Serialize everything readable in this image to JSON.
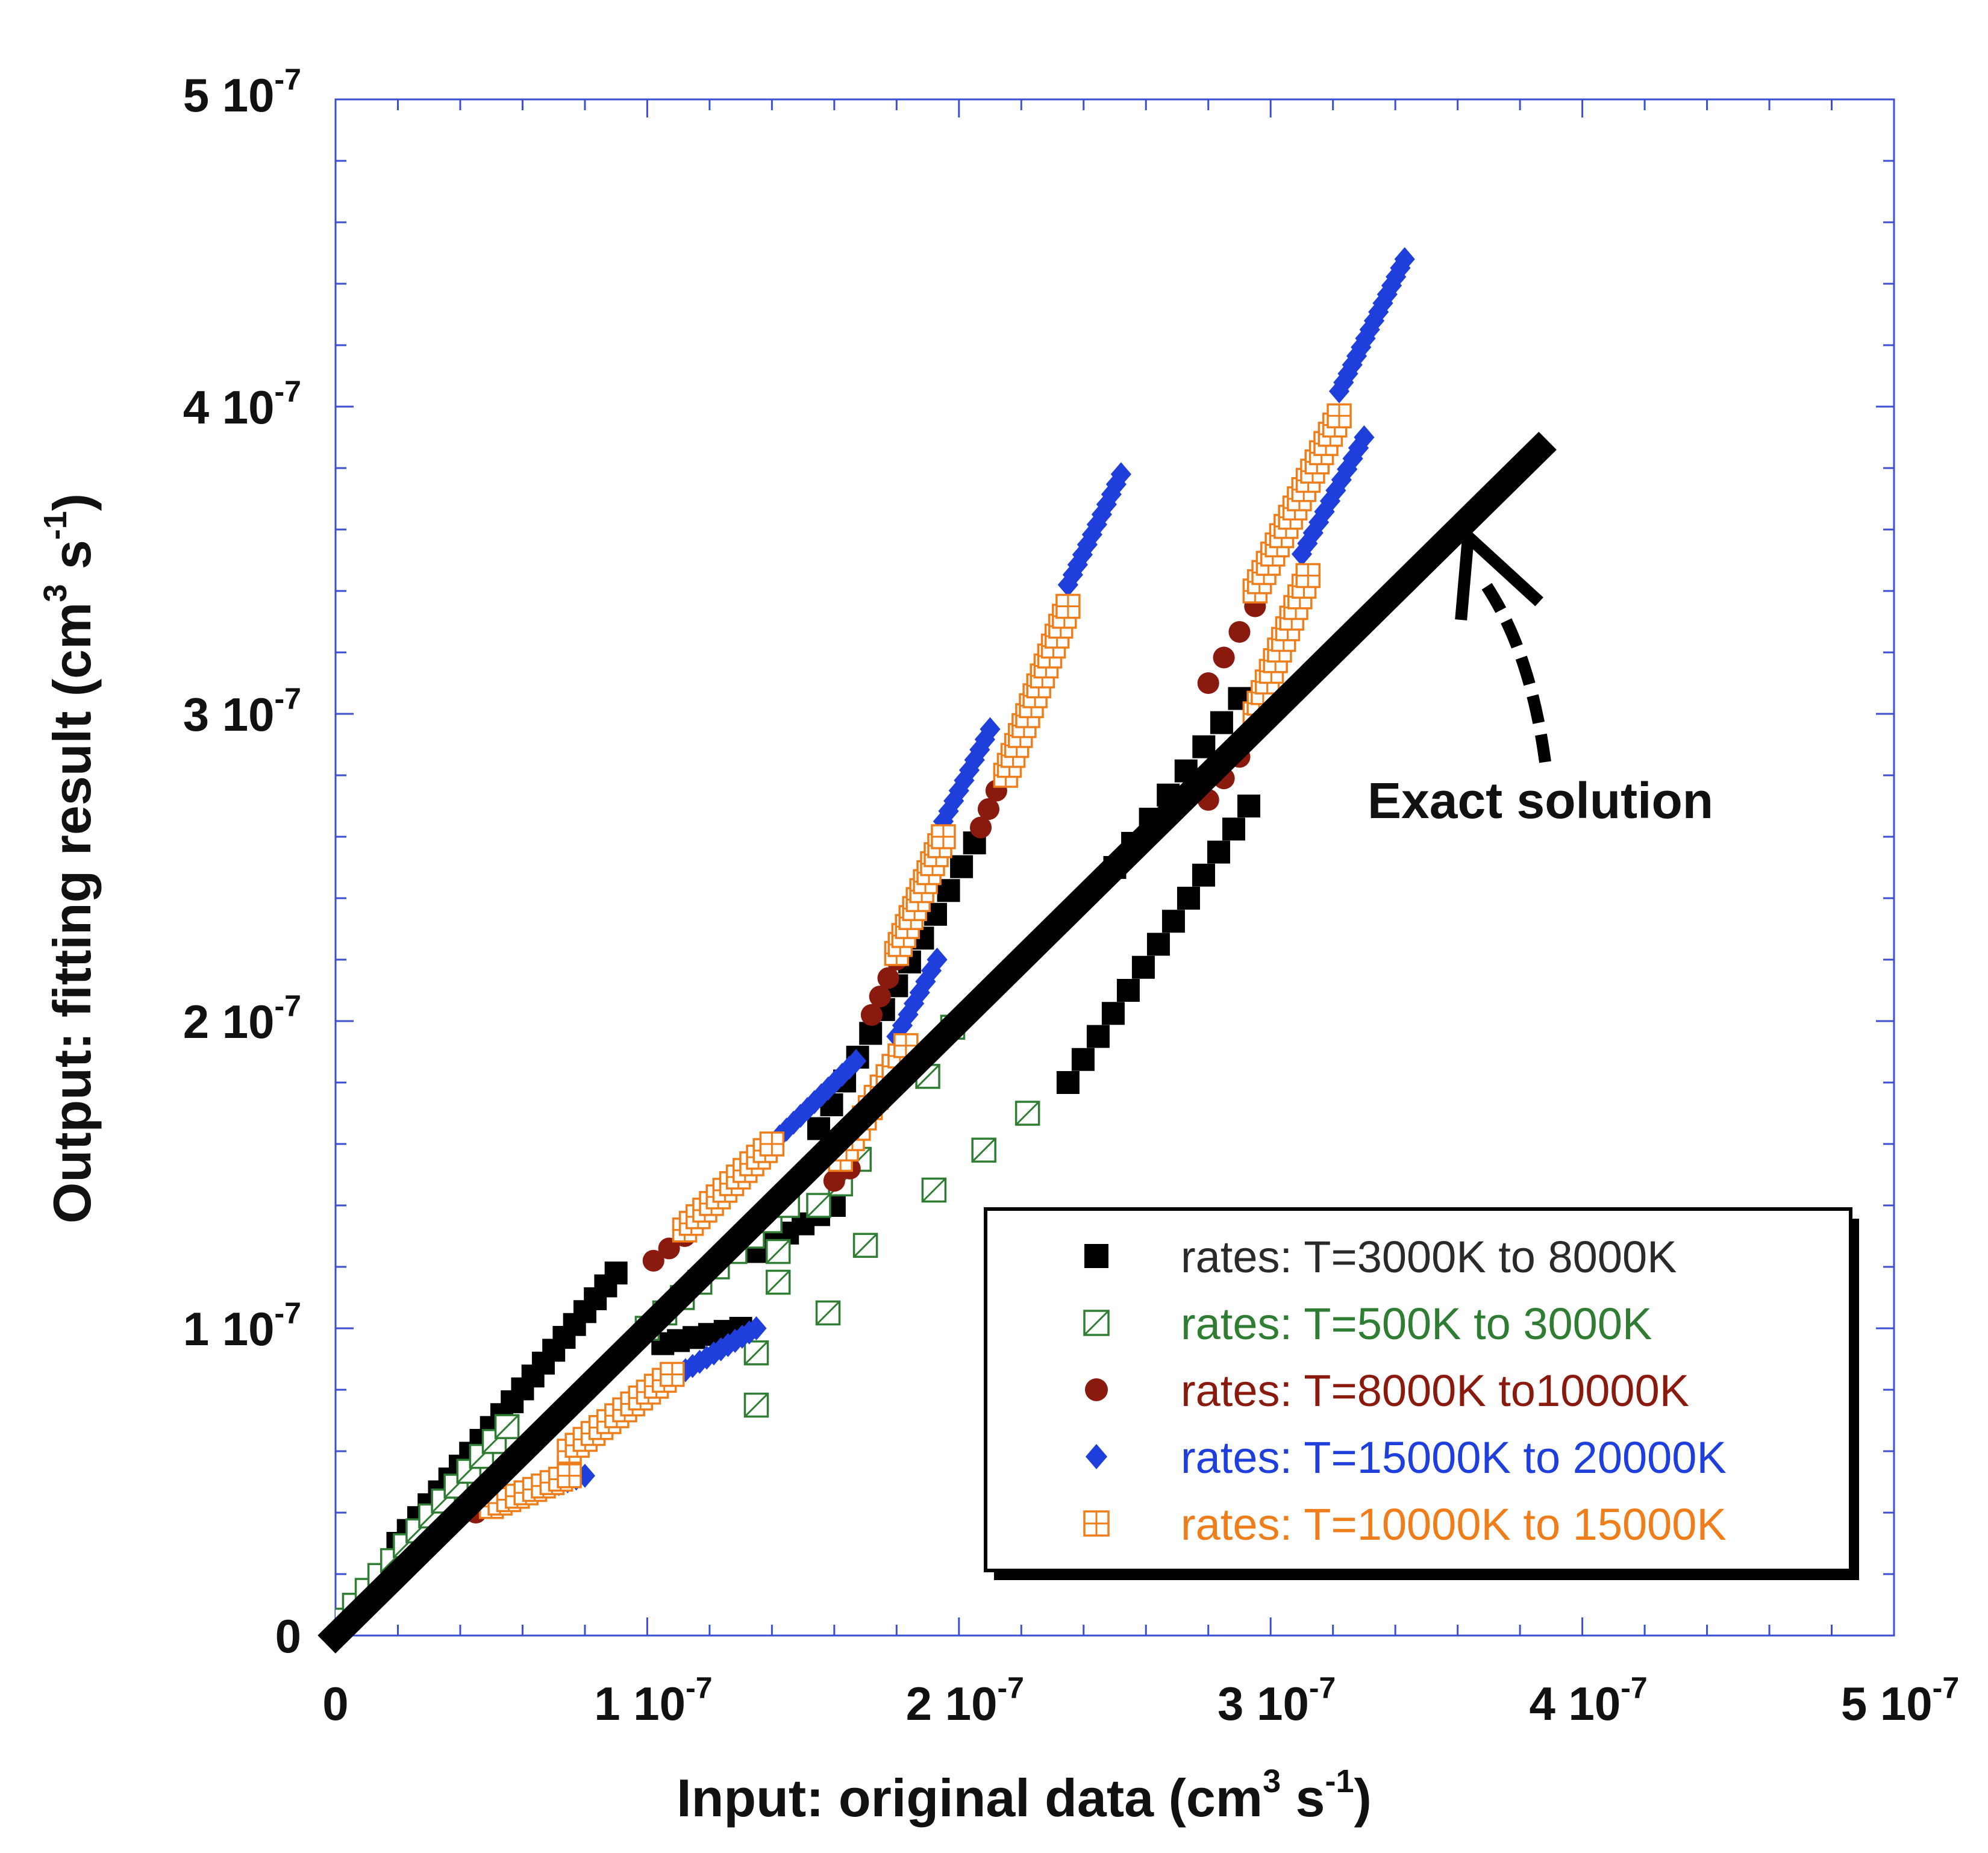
{
  "chart_data": {
    "type": "scatter",
    "xlabel": "Input: original data (cm",
    "xlabel_sup1": "3",
    "xlabel_mid": " s",
    "xlabel_sup2": "-1",
    "xlabel_end": ")",
    "ylabel": "Output: fitting result  (cm",
    "ylabel_sup1": "3",
    "ylabel_mid": " s",
    "ylabel_sup2": "-1",
    "ylabel_end": ")",
    "xlim": [
      0,
      5e-07
    ],
    "ylim": [
      0,
      5e-07
    ],
    "x_ticks": [
      {
        "value": 0,
        "mant": "0",
        "exp": ""
      },
      {
        "value": 1e-07,
        "mant": "1 10",
        "exp": "-7"
      },
      {
        "value": 2e-07,
        "mant": "2 10",
        "exp": "-7"
      },
      {
        "value": 3e-07,
        "mant": "3 10",
        "exp": "-7"
      },
      {
        "value": 4e-07,
        "mant": "4 10",
        "exp": "-7"
      },
      {
        "value": 5e-07,
        "mant": "5 10",
        "exp": "-7"
      }
    ],
    "y_ticks": [
      {
        "value": 0,
        "mant": "0",
        "exp": ""
      },
      {
        "value": 1e-07,
        "mant": "1 10",
        "exp": "-7"
      },
      {
        "value": 2e-07,
        "mant": "2 10",
        "exp": "-7"
      },
      {
        "value": 3e-07,
        "mant": "3 10",
        "exp": "-7"
      },
      {
        "value": 4e-07,
        "mant": "4 10",
        "exp": "-7"
      },
      {
        "value": 5e-07,
        "mant": "5 10",
        "exp": "-7"
      }
    ],
    "exact_line": {
      "x": [
        0,
        3.86e-07
      ],
      "y": [
        0,
        3.86e-07
      ]
    },
    "annotation": {
      "text": "Exact solution",
      "x": 3.95e-07,
      "y": 2.75e-07,
      "arrow_to": [
        3.63e-07,
        3.6e-07
      ]
    },
    "legend_position": "bottom-right",
    "series": [
      {
        "name": "rates: T=3000K to 8000K",
        "marker": "square-filled",
        "color": "#000000",
        "segments": [
          {
            "x0": 2e-08,
            "y0": 3e-08,
            "x1": 9e-08,
            "y1": 1.18e-07,
            "n": 22
          },
          {
            "x0": 1.05e-07,
            "y0": 9.5e-08,
            "x1": 1.3e-07,
            "y1": 1e-07,
            "n": 6
          },
          {
            "x0": 1.35e-07,
            "y0": 1.25e-07,
            "x1": 1.6e-07,
            "y1": 1.4e-07,
            "n": 6
          },
          {
            "x0": 1.55e-07,
            "y0": 1.65e-07,
            "x1": 2.05e-07,
            "y1": 2.58e-07,
            "n": 13
          },
          {
            "x0": 2.35e-07,
            "y0": 1.8e-07,
            "x1": 2.93e-07,
            "y1": 2.7e-07,
            "n": 13
          },
          {
            "x0": 2.5e-07,
            "y0": 2.5e-07,
            "x1": 2.9e-07,
            "y1": 3.05e-07,
            "n": 8
          }
        ]
      },
      {
        "name": "rates: T=500K to 3000K",
        "marker": "square-hatched",
        "color": "#2e7d32",
        "segments": [
          {
            "x0": 2e-09,
            "y0": 5e-09,
            "x1": 5.5e-08,
            "y1": 6.8e-08,
            "n": 14
          },
          {
            "x0": 1e-07,
            "y0": 1e-07,
            "x1": 1.45e-07,
            "y1": 1.4e-07,
            "n": 9
          }
        ],
        "points": [
          [
            1.35e-07,
            7.5e-08
          ],
          [
            1.35e-07,
            9.2e-08
          ],
          [
            1.42e-07,
            1.15e-07
          ],
          [
            1.42e-07,
            1.25e-07
          ],
          [
            1.58e-07,
            1.05e-07
          ],
          [
            1.7e-07,
            1.27e-07
          ],
          [
            1.92e-07,
            1.45e-07
          ],
          [
            2.08e-07,
            1.58e-07
          ],
          [
            2.22e-07,
            1.7e-07
          ],
          [
            1.9e-07,
            1.82e-07
          ],
          [
            1.98e-07,
            1.98e-07
          ],
          [
            1.55e-07,
            1.4e-07
          ],
          [
            1.62e-07,
            1.47e-07
          ],
          [
            1.68e-07,
            1.55e-07
          ]
        ]
      },
      {
        "name": "rates: T=8000K to10000K",
        "marker": "circle",
        "color": "#8b1a0e",
        "segments": [
          {
            "x0": 1.02e-07,
            "y0": 1.22e-07,
            "x1": 1.12e-07,
            "y1": 1.3e-07,
            "n": 3
          },
          {
            "x0": 1.72e-07,
            "y0": 2.02e-07,
            "x1": 1.8e-07,
            "y1": 2.2e-07,
            "n": 4
          },
          {
            "x0": 2.07e-07,
            "y0": 2.63e-07,
            "x1": 2.12e-07,
            "y1": 2.75e-07,
            "n": 3
          },
          {
            "x0": 2.8e-07,
            "y0": 3.1e-07,
            "x1": 2.95e-07,
            "y1": 3.35e-07,
            "n": 4
          },
          {
            "x0": 2.8e-07,
            "y0": 2.72e-07,
            "x1": 2.9e-07,
            "y1": 2.86e-07,
            "n": 3
          },
          {
            "x0": 1.6e-07,
            "y0": 1.48e-07,
            "x1": 1.65e-07,
            "y1": 1.52e-07,
            "n": 2
          },
          {
            "x0": 4.5e-08,
            "y0": 4e-08,
            "x1": 5.5e-08,
            "y1": 4.4e-08,
            "n": 3
          }
        ]
      },
      {
        "name": "rates: T=15000K to 20000K",
        "marker": "diamond",
        "color": "#1f3fdd",
        "segments": [
          {
            "x0": 5.5e-08,
            "y0": 4.4e-08,
            "x1": 8e-08,
            "y1": 5.2e-08,
            "n": 10
          },
          {
            "x0": 1.1e-07,
            "y0": 8.5e-08,
            "x1": 1.35e-07,
            "y1": 1e-07,
            "n": 12
          },
          {
            "x0": 1.38e-07,
            "y0": 1.58e-07,
            "x1": 1.67e-07,
            "y1": 1.87e-07,
            "n": 14
          },
          {
            "x0": 1.8e-07,
            "y0": 1.95e-07,
            "x1": 1.93e-07,
            "y1": 2.2e-07,
            "n": 8
          },
          {
            "x0": 1.95e-07,
            "y0": 2.65e-07,
            "x1": 2.1e-07,
            "y1": 2.95e-07,
            "n": 10
          },
          {
            "x0": 2.35e-07,
            "y0": 3.42e-07,
            "x1": 2.52e-07,
            "y1": 3.78e-07,
            "n": 12
          },
          {
            "x0": 3.1e-07,
            "y0": 3.52e-07,
            "x1": 3.3e-07,
            "y1": 3.9e-07,
            "n": 12
          },
          {
            "x0": 3.22e-07,
            "y0": 4.05e-07,
            "x1": 3.43e-07,
            "y1": 4.48e-07,
            "n": 16
          }
        ]
      },
      {
        "name": "rates: T=10000K to 15000K",
        "marker": "square-cross",
        "color": "#ef7d1a",
        "segments": [
          {
            "x0": 5e-08,
            "y0": 4.2e-08,
            "x1": 7.5e-08,
            "y1": 5.2e-08,
            "n": 10
          },
          {
            "x0": 7.5e-08,
            "y0": 6e-08,
            "x1": 1.08e-07,
            "y1": 8.5e-08,
            "n": 14
          },
          {
            "x0": 1.12e-07,
            "y0": 1.32e-07,
            "x1": 1.4e-07,
            "y1": 1.6e-07,
            "n": 14
          },
          {
            "x0": 1.62e-07,
            "y0": 1.55e-07,
            "x1": 1.83e-07,
            "y1": 1.92e-07,
            "n": 12
          },
          {
            "x0": 1.8e-07,
            "y0": 2.22e-07,
            "x1": 1.95e-07,
            "y1": 2.6e-07,
            "n": 14
          },
          {
            "x0": 2.15e-07,
            "y0": 2.8e-07,
            "x1": 2.35e-07,
            "y1": 3.35e-07,
            "n": 18
          },
          {
            "x0": 2.95e-07,
            "y0": 3e-07,
            "x1": 3.12e-07,
            "y1": 3.45e-07,
            "n": 14
          },
          {
            "x0": 2.95e-07,
            "y0": 3.4e-07,
            "x1": 3.22e-07,
            "y1": 3.97e-07,
            "n": 20
          }
        ]
      }
    ]
  }
}
